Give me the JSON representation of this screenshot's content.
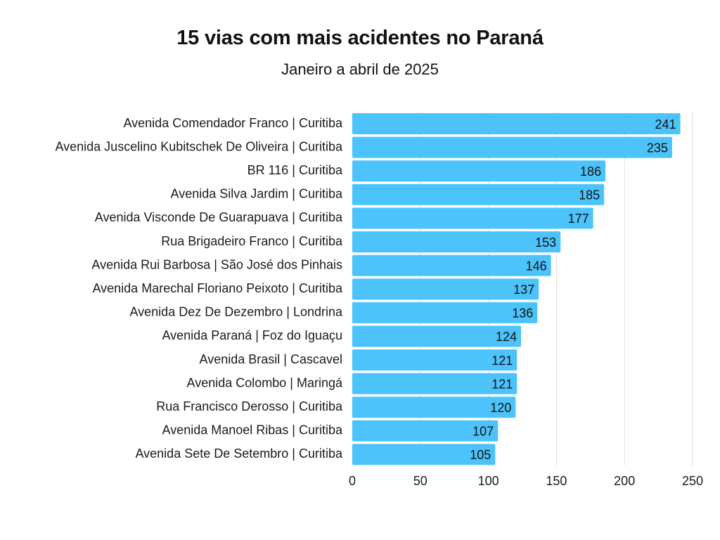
{
  "chart_data": {
    "type": "bar",
    "orientation": "horizontal",
    "title": "15 vias com mais acidentes no Paraná",
    "subtitle": "Janeiro a abril de 2025",
    "xlabel": "",
    "ylabel": "",
    "xlim": [
      0,
      250
    ],
    "xticks": [
      "0",
      "50",
      "100",
      "150",
      "200",
      "250"
    ],
    "grid": true,
    "bar_color": "#4cc3fb",
    "grid_color": "#dedede",
    "categories": [
      "Avenida Comendador Franco | Curitiba",
      "Avenida Juscelino Kubitschek De Oliveira | Curitiba",
      "BR 116 | Curitiba",
      "Avenida Silva Jardim | Curitiba",
      "Avenida Visconde De Guarapuava | Curitiba",
      "Rua Brigadeiro Franco | Curitiba",
      "Avenida Rui Barbosa | São José dos Pinhais",
      "Avenida Marechal Floriano Peixoto | Curitiba",
      "Avenida Dez De Dezembro | Londrina",
      "Avenida Paraná | Foz do Iguaçu",
      "Avenida Brasil | Cascavel",
      "Avenida Colombo | Maringá",
      "Rua Francisco Derosso | Curitiba",
      "Avenida Manoel Ribas | Curitiba",
      "Avenida Sete De Setembro | Curitiba"
    ],
    "values": [
      241,
      235,
      186,
      185,
      177,
      153,
      146,
      137,
      136,
      124,
      121,
      121,
      120,
      107,
      105
    ]
  }
}
